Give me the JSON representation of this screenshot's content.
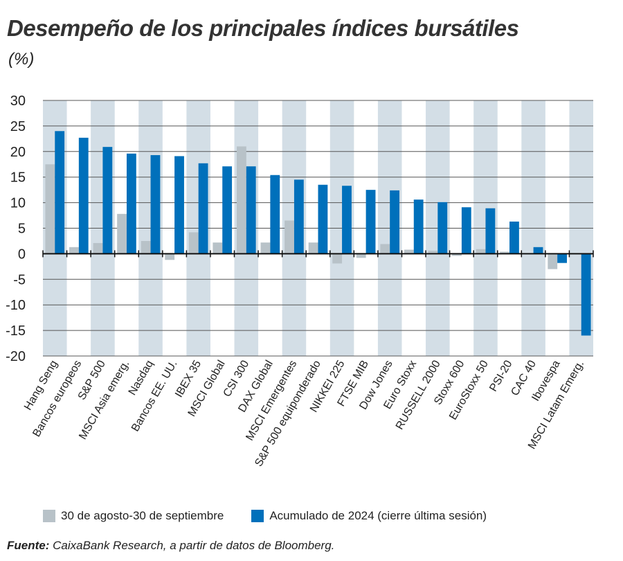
{
  "title": "Desempeño de los principales índices bursátiles",
  "unit": "(%)",
  "source_label": "Fuente:",
  "source_text": " CaixaBank Research, a partir de datos de Bloomberg.",
  "chart_data": {
    "type": "bar",
    "title": "Desempeño de los principales índices bursátiles",
    "ylabel": "(%)",
    "ylim": [
      -20,
      30
    ],
    "yticks": [
      30,
      25,
      20,
      15,
      10,
      5,
      0,
      -5,
      -10,
      -15,
      -20
    ],
    "grid": true,
    "legend_position": "bottom",
    "categories": [
      "Hang Seng",
      "Bancos europeos",
      "S&P 500",
      "MSCI Asia emerg.",
      "Nasdaq",
      "Bancos EE. UU.",
      "IBEX 35",
      "MSCI Global",
      "CSI 300",
      "DAX Global",
      "MSCI Emergentes",
      "S&P 500 equiponderado",
      "NIKKEI 225",
      "FTSE MIB",
      "Dow Jones",
      "Euro Stoxx",
      "RUSSELL 2000",
      "Stoxx 600",
      "EuroStoxx 50",
      "PSI-20",
      "CAC 40",
      "Ibovespa",
      "MSCI Latam Emerg."
    ],
    "series": [
      {
        "name": "30 de agosto-30 de septiembre",
        "color": "#b8c2c8",
        "values": [
          17.5,
          1.3,
          2.1,
          7.8,
          2.5,
          -1.2,
          4.2,
          2.2,
          21.0,
          2.2,
          6.5,
          2.2,
          -1.9,
          -0.8,
          1.9,
          0.8,
          0.6,
          -0.4,
          0.9,
          0.4,
          0.0,
          -3.0,
          0.0
        ]
      },
      {
        "name": "Acumulado de 2024 (cierre última sesión)",
        "color": "#0070bb",
        "values": [
          24.0,
          22.7,
          20.9,
          19.6,
          19.3,
          19.1,
          17.7,
          17.1,
          17.1,
          15.4,
          14.5,
          13.5,
          13.3,
          12.5,
          12.4,
          10.6,
          10.1,
          9.1,
          8.9,
          6.3,
          1.3,
          -1.8,
          -16.0
        ]
      }
    ],
    "band_color": "#d3dee6"
  }
}
